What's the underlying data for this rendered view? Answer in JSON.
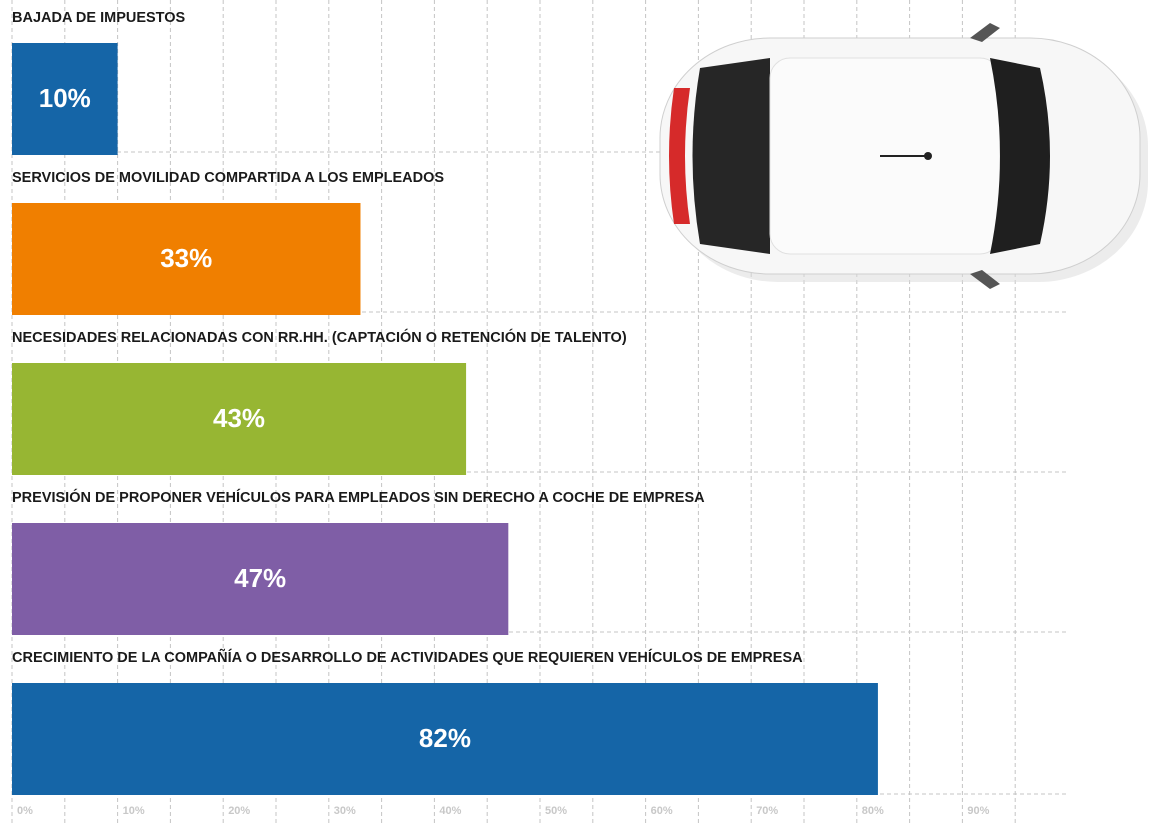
{
  "chart_data": {
    "type": "hbar",
    "categories": [
      "BAJADA DE IMPUESTOS",
      "SERVICIOS DE MOVILIDAD COMPARTIDA A LOS EMPLEADOS",
      "NECESIDADES RELACIONADAS CON RR.HH. (CAPTACIÓN O RETENCIÓN DE TALENTO)",
      "PREVISIÓN DE PROPONER VEHÍCULOS PARA EMPLEADOS SIN DERECHO A COCHE DE EMPRESA",
      "CRECIMIENTO DE LA COMPAÑÍA O DESARROLLO DE ACTIVIDADES QUE REQUIEREN VEHÍCULOS DE EMPRESA"
    ],
    "values": [
      10,
      33,
      43,
      47,
      82
    ],
    "value_labels": [
      "10%",
      "33%",
      "43%",
      "47%",
      "82%"
    ],
    "colors": [
      "#1565a7",
      "#f07f00",
      "#97b633",
      "#7f5ea6",
      "#1565a7"
    ],
    "xlim": [
      0,
      100
    ],
    "xticks": [
      {
        "value": 0,
        "label": "0%"
      },
      {
        "value": 10,
        "label": "10%"
      },
      {
        "value": 20,
        "label": "20%"
      },
      {
        "value": 30,
        "label": "30%"
      },
      {
        "value": 40,
        "label": "40%"
      },
      {
        "value": 50,
        "label": "50%"
      },
      {
        "value": 60,
        "label": "60%"
      },
      {
        "value": 70,
        "label": "70%"
      },
      {
        "value": 80,
        "label": "80%"
      },
      {
        "value": 90,
        "label": "90%"
      }
    ],
    "grid": true
  }
}
